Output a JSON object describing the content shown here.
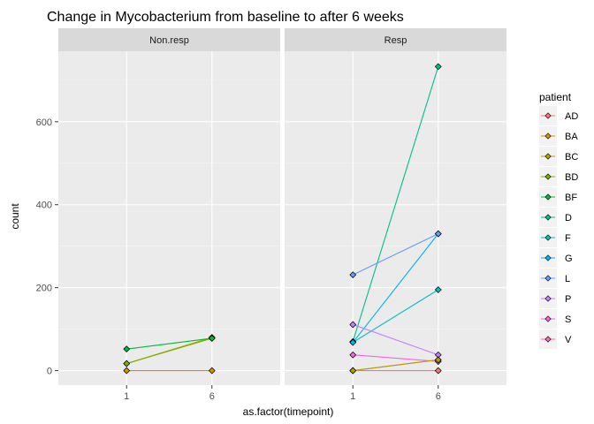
{
  "chart_data": {
    "type": "line",
    "title": "Change in Mycobacterium from baseline to after 6 weeks",
    "xlabel": "as.factor(timepoint)",
    "ylabel": "count",
    "x_categories": [
      "1",
      "6"
    ],
    "ylim": [
      -35,
      770
    ],
    "y_ticks": [
      0,
      200,
      400,
      600
    ],
    "grid": true,
    "legend_title": "patient",
    "legend_position": "right",
    "panels": [
      {
        "label": "Non.resp",
        "series": [
          {
            "name": "BA",
            "values": [
              0,
              0
            ]
          },
          {
            "name": "BC",
            "values": [
              17,
              80
            ]
          },
          {
            "name": "BD",
            "values": [
              17,
              78
            ]
          },
          {
            "name": "BF",
            "values": [
              52,
              78
            ]
          }
        ]
      },
      {
        "label": "Resp",
        "series": [
          {
            "name": "AD",
            "values": [
              0,
              0
            ]
          },
          {
            "name": "D",
            "values": [
              70,
              733
            ]
          },
          {
            "name": "F",
            "values": [
              68,
              195
            ]
          },
          {
            "name": "G",
            "values": [
              68,
              330
            ]
          },
          {
            "name": "L",
            "values": [
              231,
              330
            ]
          },
          {
            "name": "P",
            "values": [
              111,
              38
            ]
          },
          {
            "name": "S",
            "values": [
              38,
              22
            ]
          },
          {
            "name": "V",
            "values": [
              0,
              26
            ]
          },
          {
            "name": "BC",
            "values": [
              0,
              26
            ]
          }
        ]
      }
    ],
    "legend": [
      {
        "name": "AD",
        "color": "#F8766D"
      },
      {
        "name": "BA",
        "color": "#DE8C00"
      },
      {
        "name": "BC",
        "color": "#B79F00"
      },
      {
        "name": "BD",
        "color": "#7CAE00"
      },
      {
        "name": "BF",
        "color": "#00BA38"
      },
      {
        "name": "D",
        "color": "#00C08B"
      },
      {
        "name": "F",
        "color": "#00BFC4"
      },
      {
        "name": "G",
        "color": "#00B4F0"
      },
      {
        "name": "L",
        "color": "#619CFF"
      },
      {
        "name": "P",
        "color": "#C77CFF"
      },
      {
        "name": "S",
        "color": "#F564E3"
      },
      {
        "name": "V",
        "color": "#FF64B0"
      }
    ]
  }
}
